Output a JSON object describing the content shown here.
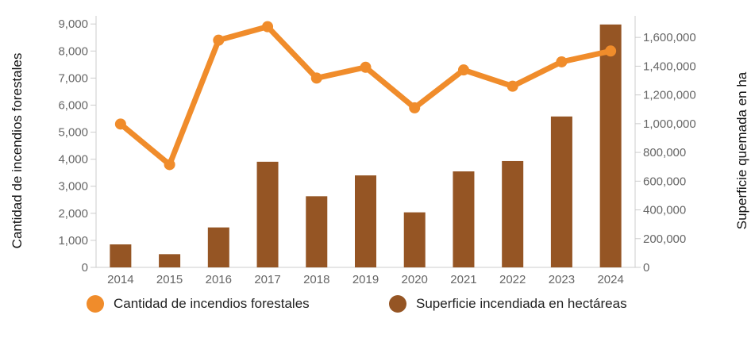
{
  "chart_data": {
    "type": "bar",
    "categories": [
      "2014",
      "2015",
      "2016",
      "2017",
      "2018",
      "2019",
      "2020",
      "2021",
      "2022",
      "2023",
      "2024"
    ],
    "series": [
      {
        "name": "Cantidad de incendios forestales",
        "type": "line",
        "axis": "left",
        "color": "#F08C2B",
        "values": [
          5300,
          3800,
          8400,
          8900,
          7000,
          7400,
          5900,
          7300,
          6700,
          7600,
          8000
        ]
      },
      {
        "name": "Superficie incendiada en hectáreas",
        "type": "bar",
        "axis": "right",
        "color": "#955524",
        "values": [
          160000,
          92000,
          278000,
          735000,
          495000,
          640000,
          383000,
          668000,
          740000,
          1050000,
          1690000
        ]
      }
    ],
    "ylabel": "Cantidad de incendios forestales",
    "y2label": "Superficie quemada en ha",
    "ylim": [
      0,
      9300
    ],
    "y2lim": [
      0,
      1750000
    ],
    "yticks": [
      {
        "value": 0,
        "label": "0"
      },
      {
        "value": 1000,
        "label": "1,000"
      },
      {
        "value": 2000,
        "label": "2,000"
      },
      {
        "value": 3000,
        "label": "3,000"
      },
      {
        "value": 4000,
        "label": "4,000"
      },
      {
        "value": 5000,
        "label": "5,000"
      },
      {
        "value": 6000,
        "label": "6,000"
      },
      {
        "value": 7000,
        "label": "7,000"
      },
      {
        "value": 8000,
        "label": "8,000"
      },
      {
        "value": 9000,
        "label": "9,000"
      }
    ],
    "y2ticks": [
      {
        "value": 0,
        "label": "0"
      },
      {
        "value": 200000,
        "label": "200,000"
      },
      {
        "value": 400000,
        "label": "400,000"
      },
      {
        "value": 600000,
        "label": "600,000"
      },
      {
        "value": 800000,
        "label": "800,000"
      },
      {
        "value": 1000000,
        "label": "1,000,000"
      },
      {
        "value": 1200000,
        "label": "1,200,000"
      },
      {
        "value": 1400000,
        "label": "1,400,000"
      },
      {
        "value": 1600000,
        "label": "1,600,000"
      }
    ],
    "grid": false,
    "legend_position": "bottom",
    "colors": {
      "axis": "#cccccc",
      "tick_text": "#666666",
      "axis_title": "#111111"
    }
  }
}
